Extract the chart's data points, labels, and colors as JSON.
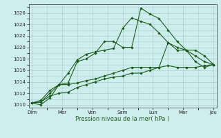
{
  "bg_color": "#ceeeed",
  "grid_color": "#aacccc",
  "line_color": "#1a5c1a",
  "marker_color": "#1a5c1a",
  "xlabel": "Pression niveau de la mer( hPa )",
  "ylim": [
    1009.5,
    1027.5
  ],
  "yticks": [
    1010,
    1012,
    1014,
    1016,
    1018,
    1020,
    1022,
    1024,
    1026
  ],
  "xtick_labels": [
    "Dim",
    "Mer",
    "Ven",
    "Sam",
    "Lun",
    "Mar",
    "Jeu"
  ],
  "xtick_positions": [
    0,
    2,
    4,
    6,
    8,
    10,
    12
  ],
  "series": [
    [
      1010.3,
      1010.0,
      1011.2,
      1013.5,
      1015.5,
      1017.8,
      1018.8,
      1019.2,
      1019.5,
      1019.8,
      1023.3,
      1025.1,
      1024.5,
      1024.0,
      1022.5,
      1020.8,
      1019.5,
      1019.5,
      1018.5,
      1017.5,
      1017.0
    ],
    [
      1010.3,
      1010.8,
      1012.5,
      1013.5,
      1013.8,
      1017.5,
      1018.0,
      1019.0,
      1021.0,
      1021.0,
      1020.0,
      1020.0,
      1026.8,
      1025.8,
      1025.0,
      1023.0,
      1021.0,
      1019.5,
      1019.5,
      1018.5,
      1017.0
    ],
    [
      1010.3,
      1010.5,
      1012.0,
      1013.5,
      1013.5,
      1013.8,
      1014.2,
      1014.5,
      1015.0,
      1015.5,
      1016.0,
      1016.5,
      1016.5,
      1016.5,
      1016.5,
      1020.8,
      1020.0,
      1019.5,
      1017.5,
      1016.5,
      1017.0
    ],
    [
      1010.3,
      1010.5,
      1011.5,
      1012.0,
      1012.2,
      1013.0,
      1013.5,
      1014.0,
      1014.5,
      1014.8,
      1015.0,
      1015.5,
      1015.5,
      1016.0,
      1016.5,
      1016.8,
      1016.5,
      1016.5,
      1016.5,
      1016.8,
      1017.0
    ]
  ],
  "n_points": 21,
  "x_start": 0,
  "x_end": 12
}
